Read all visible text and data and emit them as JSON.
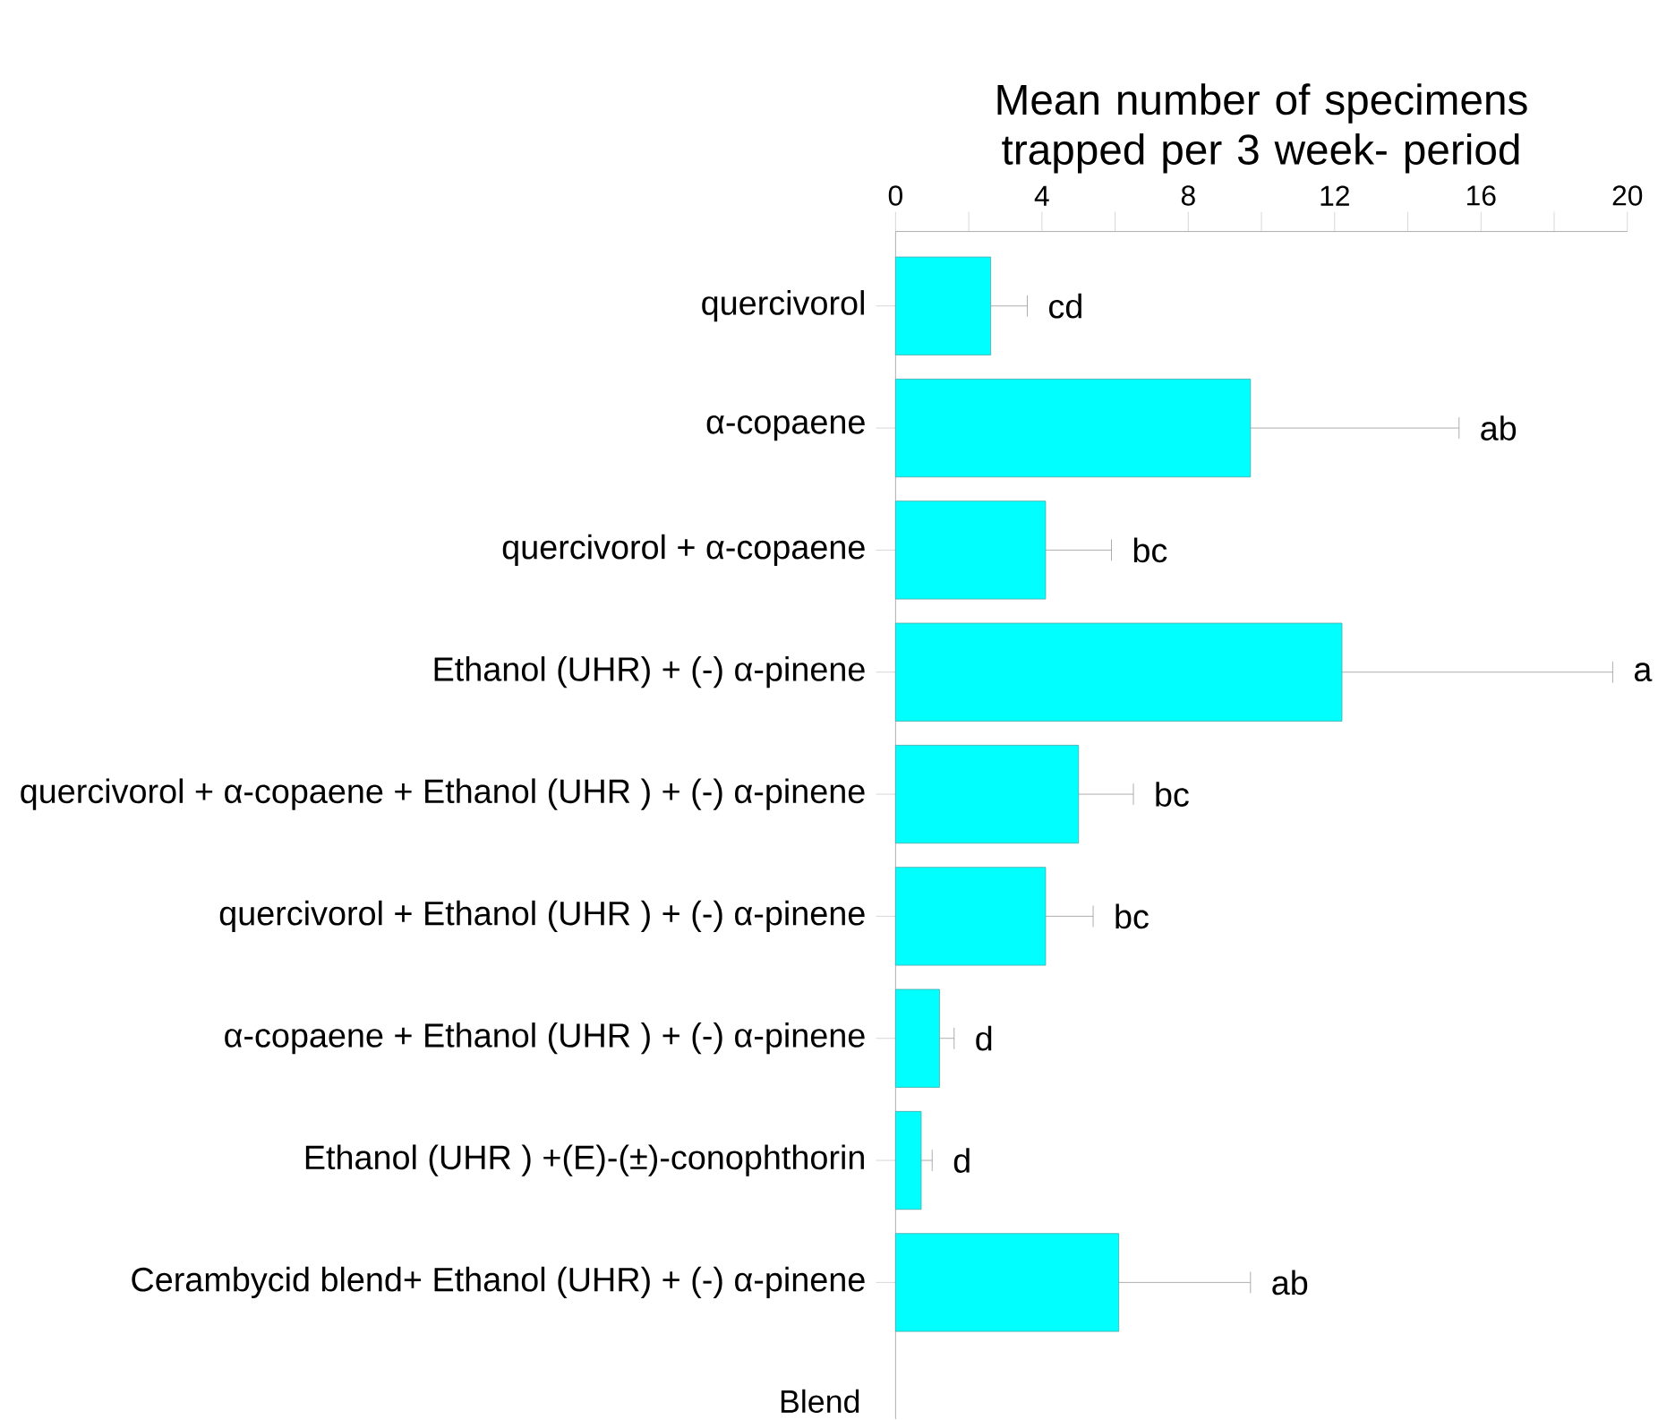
{
  "chart_data": {
    "type": "bar",
    "orientation": "horizontal",
    "xlabel": "Mean number of specimens trapped per 3 week- period",
    "ylabel": "Blend",
    "categories": [
      "quercivorol",
      "α-copaene",
      "quercivorol + α-copaene",
      "Ethanol (UHR) + (-) α-pinene",
      "quercivorol + α-copaene + Ethanol (UHR ) + (-) α-pinene",
      "quercivorol + Ethanol (UHR ) + (-) α-pinene",
      "α-copaene + Ethanol (UHR ) + (-) α-pinene",
      "Ethanol (UHR ) +(E)-(±)-conophthorin",
      "Cerambycid blend+ Ethanol (UHR) + (-) α-pinene"
    ],
    "values": [
      2.6,
      9.7,
      4.1,
      12.2,
      5.0,
      4.1,
      1.2,
      0.7,
      6.1
    ],
    "errors": [
      1.0,
      5.7,
      1.8,
      7.4,
      1.5,
      1.3,
      0.4,
      0.3,
      3.6
    ],
    "color": "#00ffff",
    "xlim": [
      0,
      20
    ],
    "xticks": [
      0,
      {
        "value": 2,
        "label": null
      },
      4,
      {
        "value": 6,
        "label": null
      },
      8,
      {
        "value": 10,
        "label": null
      },
      12,
      {
        "value": 14,
        "label": null
      },
      16,
      {
        "value": 18,
        "label": null
      },
      20
    ],
    "annotations": [
      {
        "text": "cd",
        "x": 3.6,
        "y": "quercivorol"
      },
      {
        "text": "ab",
        "x": 15.4,
        "y": "α-copaene"
      },
      {
        "text": "bc",
        "x": 5.9,
        "y": "quercivorol + α-copaene"
      },
      {
        "text": "a",
        "x": 19.6,
        "y": "Ethanol (UHR) + (-) α-pinene"
      },
      {
        "text": "bc",
        "x": 6.5,
        "y": "quercivorol + α-copaene + Ethanol (UHR ) + (-) α-pinene"
      },
      {
        "text": "bc",
        "x": 5.4,
        "y": "quercivorol + Ethanol (UHR ) + (-) α-pinene"
      },
      {
        "text": "d",
        "x": 1.6,
        "y": "α-copaene + Ethanol (UHR ) + (-) α-pinene"
      },
      {
        "text": "d",
        "x": 1.0,
        "y": "Ethanol (UHR ) +(E)-(±)-conophthorin"
      },
      {
        "text": "ab",
        "x": 9.7,
        "y": "Cerambycid blend+ Ethanol (UHR) + (-) α-pinene"
      }
    ],
    "grid": false
  }
}
